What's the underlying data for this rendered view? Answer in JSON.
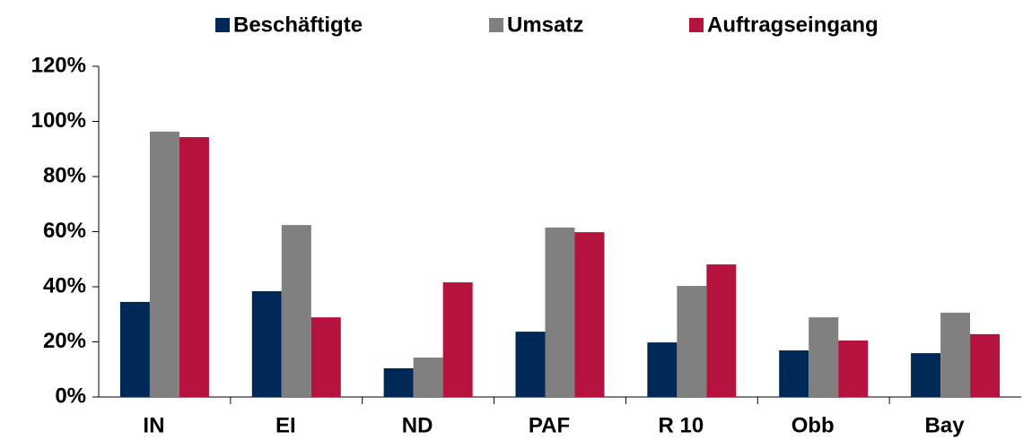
{
  "chart_data": {
    "type": "bar",
    "categories": [
      "IN",
      "EI",
      "ND",
      "PAF",
      "R 10",
      "Obb",
      "Bay"
    ],
    "series": [
      {
        "name": "Beschäftigte",
        "color": "#002856",
        "values": [
          34.5,
          38.4,
          10.4,
          23.7,
          19.8,
          16.9,
          15.9
        ]
      },
      {
        "name": "Umsatz",
        "color": "#808080",
        "values": [
          96.3,
          62.4,
          14.3,
          61.5,
          40.3,
          28.9,
          30.6
        ]
      },
      {
        "name": "Auftragseingang",
        "color": "#b5123e",
        "values": [
          94.3,
          28.9,
          41.6,
          59.8,
          48.1,
          20.5,
          22.8
        ]
      }
    ],
    "ylim": [
      0,
      120
    ],
    "yticks": [
      {
        "value": 0,
        "label": "0%"
      },
      {
        "value": 20,
        "label": "20%"
      },
      {
        "value": 40,
        "label": "40%"
      },
      {
        "value": 60,
        "label": "60%"
      },
      {
        "value": 80,
        "label": "80%"
      },
      {
        "value": 100,
        "label": "100%"
      },
      {
        "value": 120,
        "label": "120%"
      }
    ],
    "grid": false,
    "legend": "top"
  }
}
